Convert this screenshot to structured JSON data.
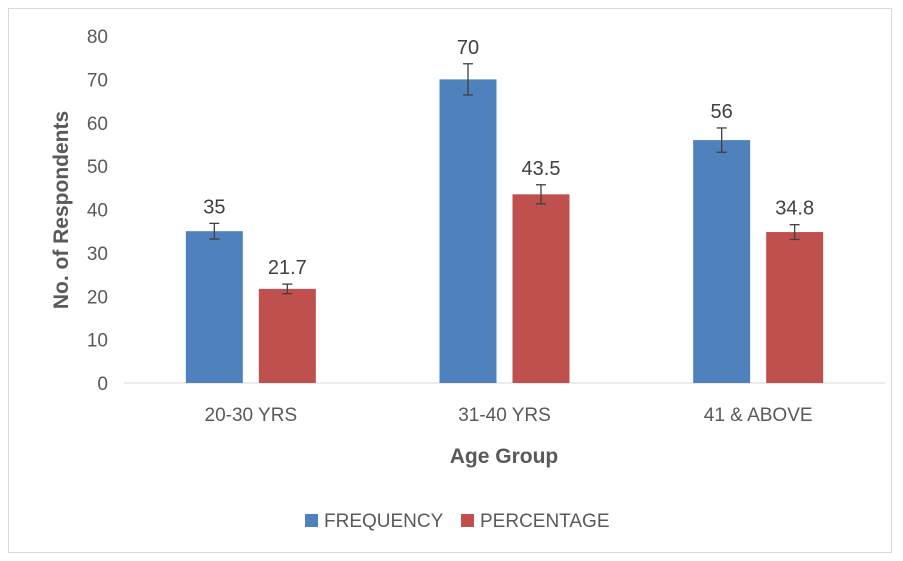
{
  "chart_data": {
    "type": "bar",
    "title": "",
    "xlabel": "Age Group",
    "ylabel": "No. of Respondents",
    "categories": [
      "20-30 YRS",
      "31-40 YRS",
      "41 & ABOVE"
    ],
    "series": [
      {
        "name": "FREQUENCY",
        "color": "#4f81bd",
        "values": [
          35,
          70,
          56
        ],
        "labels": [
          "35",
          "70",
          "56"
        ],
        "errors": [
          1.8,
          3.6,
          2.8
        ]
      },
      {
        "name": "PERCENTAGE",
        "color": "#c0504d",
        "values": [
          21.7,
          43.5,
          34.8
        ],
        "labels": [
          "21.7",
          "43.5",
          "34.8"
        ],
        "errors": [
          1.1,
          2.2,
          1.7
        ]
      }
    ],
    "ylim": [
      0,
      80
    ],
    "yticks": [
      "0",
      "10",
      "20",
      "30",
      "40",
      "50",
      "60",
      "70",
      "80"
    ],
    "grid": false,
    "legend_position": "bottom"
  }
}
